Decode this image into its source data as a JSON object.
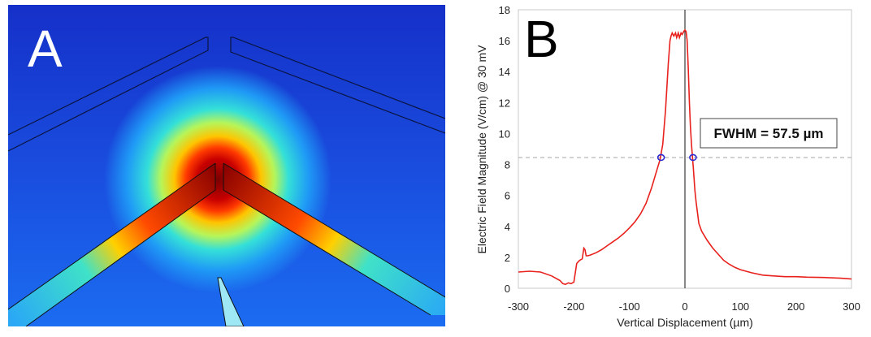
{
  "panel_a": {
    "label": "A"
  },
  "panel_b": {
    "label": "B"
  },
  "chart_data": {
    "type": "line",
    "xlabel": "Vertical Displacement (µm)",
    "ylabel": "Electric Field Magnitude (V/cm) @ 30 mV",
    "xlim": [
      -300,
      300
    ],
    "ylim": [
      0,
      18
    ],
    "xticks": [
      "-300",
      "-200",
      "-100",
      "0",
      "100",
      "200",
      "300"
    ],
    "yticks": [
      "0",
      "2",
      "4",
      "6",
      "8",
      "10",
      "12",
      "14",
      "16",
      "18"
    ],
    "grid": false,
    "annotation": "FWHM = 57.5 µm",
    "half_max": 8.45,
    "half_max_points": [
      [
        -43,
        8.45
      ],
      [
        14.5,
        8.45
      ]
    ],
    "colors": {
      "line": "#e8211d",
      "marker": "#2a2ad0",
      "halfmax_line": "#b8b8b8"
    },
    "series": [
      {
        "x": [
          -300,
          -280,
          -260,
          -240,
          -225,
          -220,
          -215,
          -210,
          -205,
          -200,
          -195,
          -190,
          -185,
          -182,
          -180,
          -178,
          -175,
          -170,
          -160,
          -150,
          -140,
          -130,
          -120,
          -110,
          -100,
          -90,
          -80,
          -70,
          -60,
          -55,
          -50,
          -45,
          -40,
          -35,
          -30,
          -27,
          -25,
          -23,
          -20,
          -17,
          -15,
          -12,
          -10,
          -7,
          -5,
          -2,
          0,
          2,
          4,
          6,
          8,
          10,
          12,
          15,
          18,
          20,
          25,
          30,
          40,
          50,
          60,
          70,
          80,
          90,
          100,
          120,
          140,
          160,
          180,
          200,
          220,
          250,
          280,
          300
        ],
        "y": [
          1.05,
          1.1,
          1.05,
          0.8,
          0.5,
          0.3,
          0.25,
          0.35,
          0.3,
          0.4,
          1.6,
          1.8,
          1.9,
          2.6,
          2.5,
          2.1,
          2.1,
          2.15,
          2.3,
          2.5,
          2.75,
          3.0,
          3.25,
          3.55,
          3.9,
          4.3,
          4.8,
          5.5,
          6.5,
          7.1,
          7.7,
          8.3,
          9.3,
          11.5,
          14.5,
          16.0,
          16.3,
          16.5,
          16.3,
          16.5,
          16.2,
          16.5,
          16.2,
          16.5,
          16.4,
          16.6,
          16.7,
          16.6,
          16.0,
          14.2,
          12.0,
          10.4,
          9.2,
          7.8,
          6.3,
          5.6,
          4.2,
          3.7,
          3.1,
          2.6,
          2.2,
          1.8,
          1.55,
          1.35,
          1.2,
          1.0,
          0.85,
          0.8,
          0.75,
          0.75,
          0.72,
          0.7,
          0.65,
          0.6
        ]
      }
    ]
  }
}
